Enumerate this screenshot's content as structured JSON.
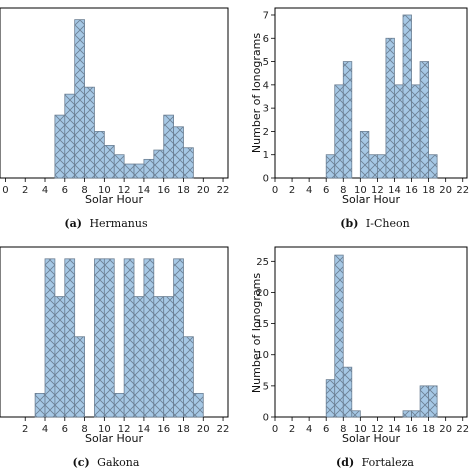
{
  "chart_data": [
    {
      "type": "bar",
      "panel": "a",
      "caption_letter": "(a)",
      "caption_text": "Hermanus",
      "xlabel": "Solar Hour",
      "ylabel": "",
      "xlim": [
        0,
        22.5
      ],
      "ylim": [
        0,
        7.3
      ],
      "xticks": [
        0,
        2,
        4,
        6,
        8,
        10,
        12,
        14,
        16,
        18,
        20,
        22
      ],
      "yticks": [],
      "bin_edges": [
        5,
        6,
        7,
        8,
        9,
        10,
        11,
        12,
        13,
        14,
        15,
        16,
        17,
        18,
        19
      ],
      "values": [
        2.7,
        3.6,
        6.8,
        3.9,
        2.0,
        1.4,
        1.0,
        0.6,
        0.6,
        0.8,
        1.2,
        2.7,
        2.2,
        1.3
      ],
      "bar_color": "#a6c8e5",
      "edge_color": "#6b7f93"
    },
    {
      "type": "bar",
      "panel": "b",
      "caption_letter": "(b)",
      "caption_text": "I-Cheon",
      "xlabel": "Solar Hour",
      "ylabel": "Number of Ionograms",
      "xlim": [
        0,
        22.5
      ],
      "ylim": [
        0,
        7.3
      ],
      "xticks": [
        0,
        2,
        4,
        6,
        8,
        10,
        12,
        14,
        16,
        18,
        20,
        22
      ],
      "yticks": [
        0,
        1,
        2,
        3,
        4,
        5,
        6,
        7
      ],
      "bin_edges": [
        6,
        7,
        8,
        9,
        10,
        11,
        12,
        13,
        14,
        15,
        16,
        17,
        18,
        19
      ],
      "values": [
        1,
        4,
        5,
        0,
        2,
        1,
        1,
        6,
        4,
        7,
        4,
        5,
        1
      ],
      "bar_color": "#a6c8e5",
      "edge_color": "#6b7f93"
    },
    {
      "type": "bar",
      "panel": "c",
      "caption_letter": "(c)",
      "caption_text": "Gakona",
      "xlabel": "Solar Hour",
      "ylabel": "",
      "xlim": [
        0,
        22.5
      ],
      "ylim": [
        0,
        7.2
      ],
      "xticks": [
        2,
        4,
        6,
        8,
        10,
        12,
        14,
        16,
        18,
        20,
        22
      ],
      "yticks": [],
      "bin_edges": [
        3,
        4,
        5,
        6,
        7,
        8,
        9,
        10,
        11,
        12,
        13,
        14,
        15,
        16,
        17,
        18,
        19,
        20,
        21
      ],
      "values": [
        1.0,
        6.7,
        5.1,
        6.7,
        3.4,
        0.0,
        6.7,
        6.7,
        1.0,
        6.7,
        5.1,
        6.7,
        5.1,
        5.1,
        6.7,
        3.4,
        1.0,
        0.0
      ],
      "bar_color": "#a6c8e5",
      "edge_color": "#6b7f93"
    },
    {
      "type": "bar",
      "panel": "d",
      "caption_letter": "(d)",
      "caption_text": "Fortaleza",
      "xlabel": "Solar Hour",
      "ylabel": "Number of Ionograms",
      "xlim": [
        0,
        22.5
      ],
      "ylim": [
        0,
        27.3
      ],
      "xticks": [
        0,
        2,
        4,
        6,
        8,
        10,
        12,
        14,
        16,
        18,
        20,
        22
      ],
      "yticks": [
        0,
        5,
        10,
        15,
        20,
        25
      ],
      "bin_edges": [
        6,
        7,
        8,
        9,
        10,
        11,
        12,
        13,
        14,
        15,
        16,
        17,
        18,
        19
      ],
      "values": [
        6,
        26,
        8,
        1,
        0,
        0,
        0,
        0,
        0,
        1,
        1,
        5,
        5
      ],
      "bar_color": "#a6c8e5",
      "edge_color": "#6b7f93"
    }
  ]
}
